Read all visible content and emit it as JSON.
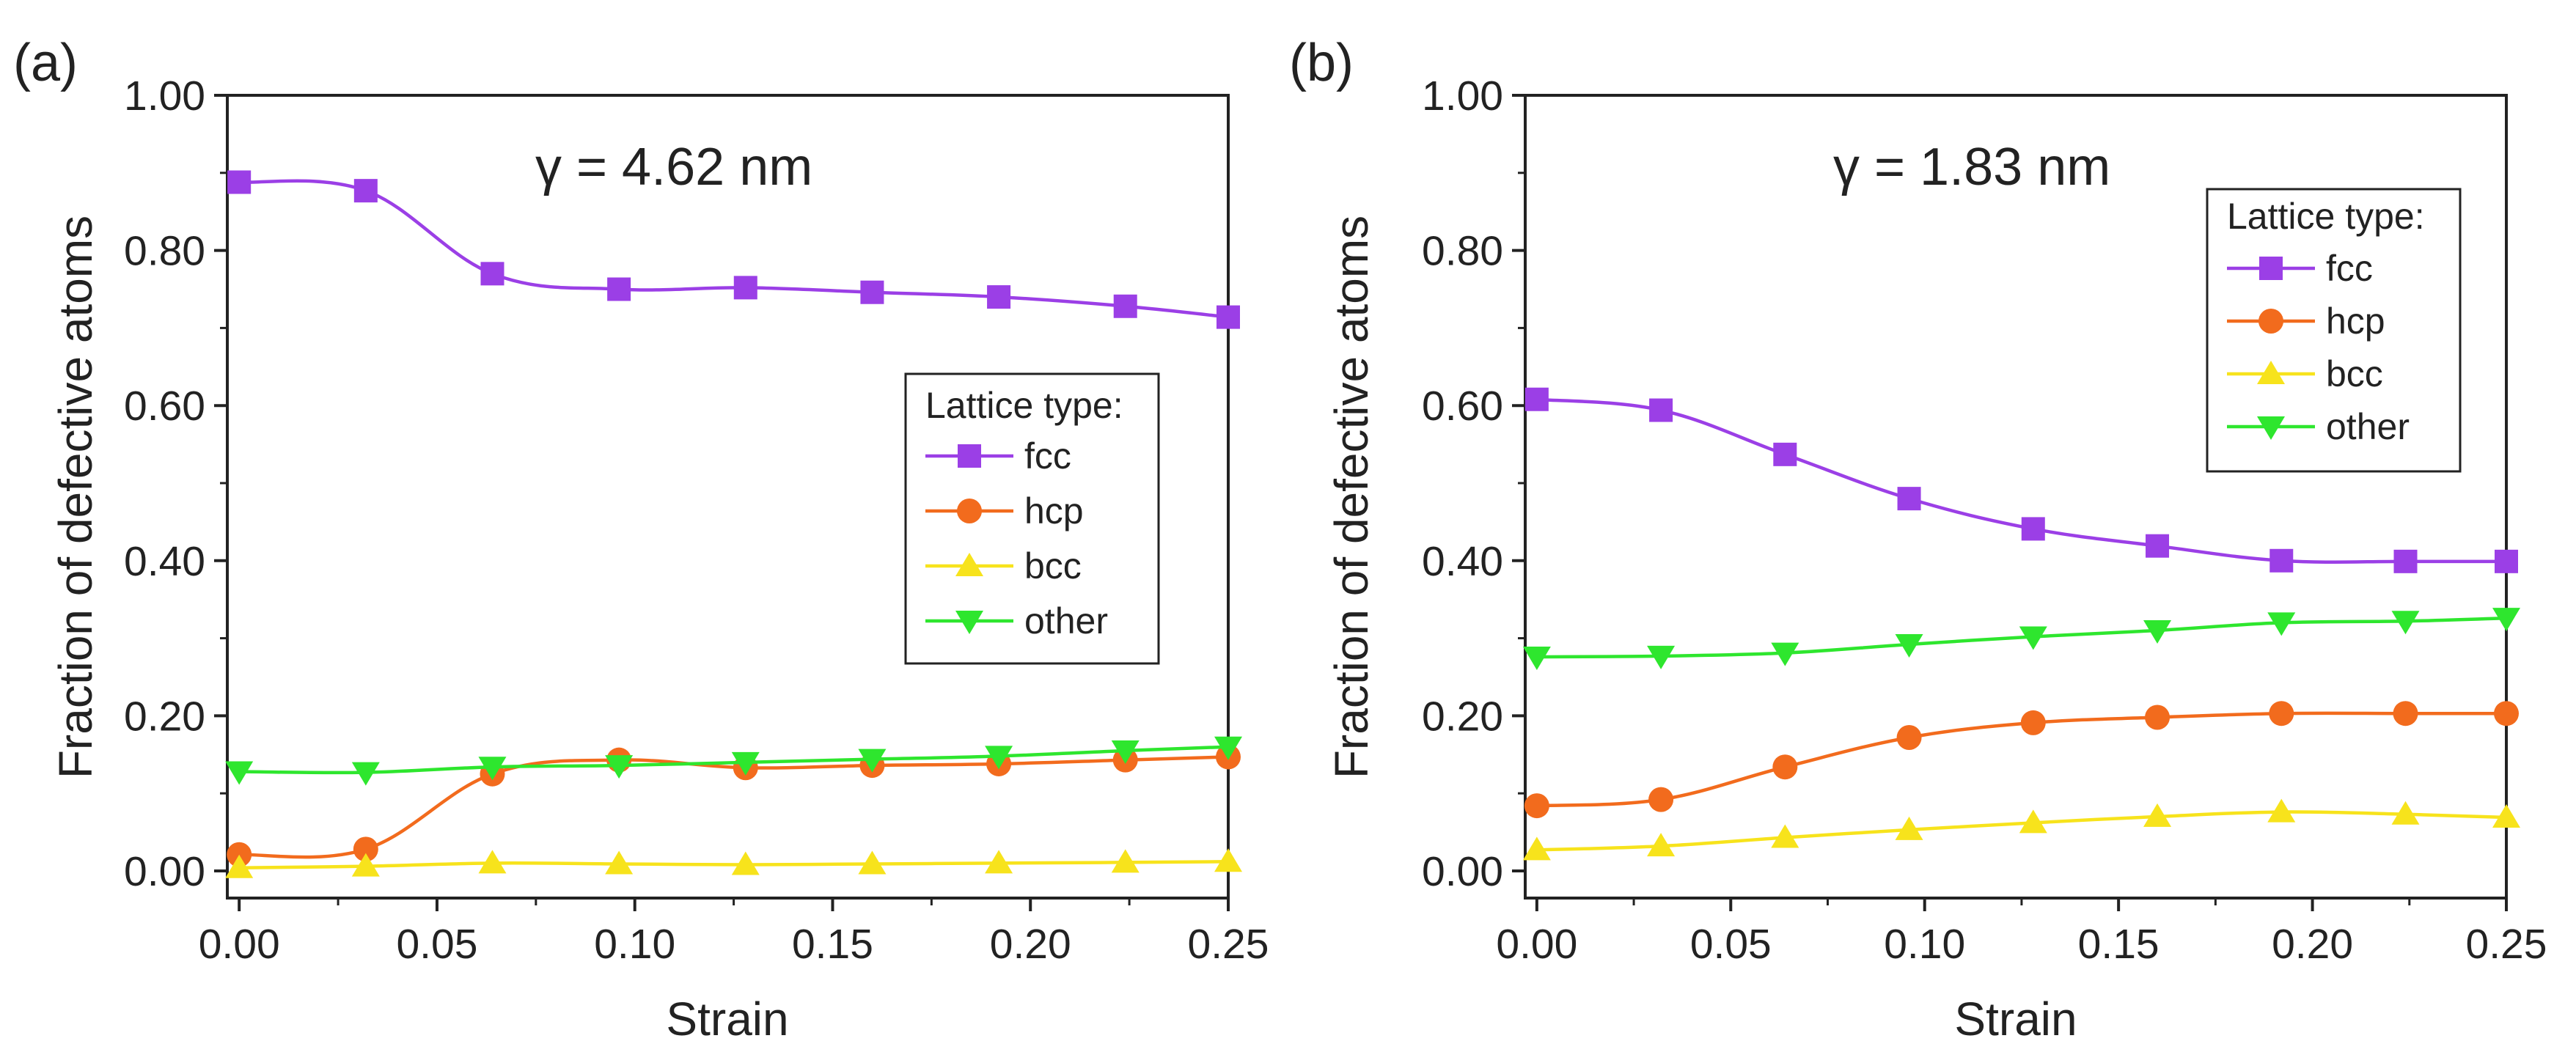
{
  "chart_data": [
    {
      "type": "line",
      "panel_label": "(a)",
      "annotation": "γ = 4.62 nm",
      "xlabel": "Strain",
      "ylabel": "Fraction of defective atoms",
      "xlim": [
        0.0,
        0.25
      ],
      "ylim": [
        0.0,
        1.0
      ],
      "xticks": [
        "0.00",
        "0.05",
        "0.10",
        "0.15",
        "0.20",
        "0.25"
      ],
      "yticks": [
        "0.00",
        "0.20",
        "0.40",
        "0.60",
        "0.80",
        "1.00"
      ],
      "grid": false,
      "legend_title": "Lattice type:",
      "legend_position": "middle-right",
      "x": [
        0.0,
        0.032,
        0.064,
        0.096,
        0.128,
        0.16,
        0.192,
        0.224,
        0.25
      ],
      "series": [
        {
          "name": "fcc",
          "marker": "square",
          "color": "#9B3FE6",
          "values": [
            0.888,
            0.877,
            0.77,
            0.75,
            0.752,
            0.746,
            0.74,
            0.728,
            0.714
          ]
        },
        {
          "name": "hcp",
          "marker": "circle",
          "color": "#F26B1D",
          "values": [
            0.021,
            0.028,
            0.125,
            0.143,
            0.133,
            0.136,
            0.138,
            0.143,
            0.147
          ]
        },
        {
          "name": "bcc",
          "marker": "triangle-up",
          "color": "#F7E31C",
          "values": [
            0.004,
            0.006,
            0.01,
            0.009,
            0.008,
            0.009,
            0.01,
            0.011,
            0.012
          ]
        },
        {
          "name": "other",
          "marker": "triangle-down",
          "color": "#2EE62E",
          "values": [
            0.128,
            0.127,
            0.134,
            0.136,
            0.14,
            0.144,
            0.148,
            0.155,
            0.16
          ]
        }
      ]
    },
    {
      "type": "line",
      "panel_label": "(b)",
      "annotation": "γ = 1.83 nm",
      "xlabel": "Strain",
      "ylabel": "Fraction of defective atoms",
      "xlim": [
        0.0,
        0.25
      ],
      "ylim": [
        0.0,
        1.0
      ],
      "xticks": [
        "0.00",
        "0.05",
        "0.10",
        "0.15",
        "0.20",
        "0.25"
      ],
      "yticks": [
        "0.00",
        "0.20",
        "0.40",
        "0.60",
        "0.80",
        "1.00"
      ],
      "grid": false,
      "legend_title": "Lattice type:",
      "legend_position": "top-right",
      "x": [
        0.0,
        0.032,
        0.064,
        0.096,
        0.128,
        0.16,
        0.192,
        0.224,
        0.25
      ],
      "series": [
        {
          "name": "fcc",
          "marker": "square",
          "color": "#9B3FE6",
          "values": [
            0.608,
            0.594,
            0.537,
            0.48,
            0.441,
            0.419,
            0.4,
            0.399,
            0.399
          ]
        },
        {
          "name": "hcp",
          "marker": "circle",
          "color": "#F26B1D",
          "values": [
            0.084,
            0.092,
            0.134,
            0.172,
            0.191,
            0.198,
            0.203,
            0.203,
            0.203
          ]
        },
        {
          "name": "bcc",
          "marker": "triangle-up",
          "color": "#F7E31C",
          "values": [
            0.027,
            0.032,
            0.043,
            0.053,
            0.062,
            0.07,
            0.076,
            0.073,
            0.069
          ]
        },
        {
          "name": "other",
          "marker": "triangle-down",
          "color": "#2EE62E",
          "values": [
            0.276,
            0.277,
            0.281,
            0.292,
            0.302,
            0.31,
            0.32,
            0.322,
            0.326
          ]
        }
      ]
    }
  ]
}
